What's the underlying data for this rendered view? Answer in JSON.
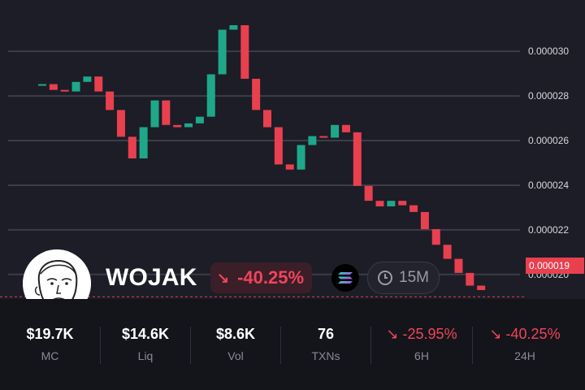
{
  "token": {
    "name": "WOJAK",
    "change_pct": "-40.25%",
    "timeframe": "15M"
  },
  "price_tag": "0.000019",
  "colors": {
    "up": "#1fa78a",
    "down": "#e8404f",
    "background": "#1c1d26",
    "stats_background": "#14151b",
    "gridline": "#3c3d47"
  },
  "icons": {
    "avatar": "wojak-face-icon",
    "change_arrow": "arrow-down-right-icon",
    "chain": "solana-icon",
    "timeframe": "clock-icon"
  },
  "stats": [
    {
      "value": "$19.7K",
      "label": "MC"
    },
    {
      "value": "$14.6K",
      "label": "Liq"
    },
    {
      "value": "$8.6K",
      "label": "Vol"
    },
    {
      "value": "76",
      "label": "TXNs"
    },
    {
      "value": "-25.95%",
      "label": "6H",
      "arrow": "↘"
    },
    {
      "value": "-40.25%",
      "label": "24H",
      "arrow": "↘"
    }
  ],
  "chart_data": {
    "type": "candlestick",
    "y_ticks": [
      "0.000030",
      "0.000028",
      "0.000026",
      "0.000024",
      "0.000022",
      "0.000020"
    ],
    "ylim": [
      1.89e-05,
      3.23e-05
    ],
    "current_price": 1.9e-05,
    "grid": true,
    "candles": [
      {
        "o": 2.847e-05,
        "c": 2.853e-05
      },
      {
        "o": 2.853e-05,
        "c": 2.827e-05
      },
      {
        "o": 2.827e-05,
        "c": 2.82e-05
      },
      {
        "o": 2.82e-05,
        "c": 2.863e-05
      },
      {
        "o": 2.863e-05,
        "c": 2.887e-05
      },
      {
        "o": 2.887e-05,
        "c": 2.82e-05
      },
      {
        "o": 2.82e-05,
        "c": 2.737e-05
      },
      {
        "o": 2.737e-05,
        "c": 2.617e-05
      },
      {
        "o": 2.617e-05,
        "c": 2.52e-05
      },
      {
        "o": 2.52e-05,
        "c": 2.66e-05
      },
      {
        "o": 2.66e-05,
        "c": 2.78e-05
      },
      {
        "o": 2.78e-05,
        "c": 2.67e-05
      },
      {
        "o": 2.67e-05,
        "c": 2.66e-05
      },
      {
        "o": 2.66e-05,
        "c": 2.677e-05
      },
      {
        "o": 2.677e-05,
        "c": 2.707e-05
      },
      {
        "o": 2.707e-05,
        "c": 2.897e-05
      },
      {
        "o": 2.897e-05,
        "c": 3.097e-05
      },
      {
        "o": 3.097e-05,
        "c": 3.117e-05
      },
      {
        "o": 3.117e-05,
        "c": 2.877e-05
      },
      {
        "o": 2.877e-05,
        "c": 2.737e-05
      },
      {
        "o": 2.737e-05,
        "c": 2.66e-05
      },
      {
        "o": 2.66e-05,
        "c": 2.493e-05
      },
      {
        "o": 2.493e-05,
        "c": 2.47e-05
      },
      {
        "o": 2.47e-05,
        "c": 2.58e-05
      },
      {
        "o": 2.58e-05,
        "c": 2.62e-05
      },
      {
        "o": 2.62e-05,
        "c": 2.613e-05
      },
      {
        "o": 2.613e-05,
        "c": 2.67e-05
      },
      {
        "o": 2.67e-05,
        "c": 2.637e-05
      },
      {
        "o": 2.637e-05,
        "c": 2.397e-05
      },
      {
        "o": 2.397e-05,
        "c": 2.33e-05
      },
      {
        "o": 2.33e-05,
        "c": 2.305e-05
      },
      {
        "o": 2.305e-05,
        "c": 2.33e-05
      },
      {
        "o": 2.33e-05,
        "c": 2.31e-05
      },
      {
        "o": 2.31e-05,
        "c": 2.28e-05
      },
      {
        "o": 2.28e-05,
        "c": 2.203e-05
      },
      {
        "o": 2.203e-05,
        "c": 2.133e-05
      },
      {
        "o": 2.133e-05,
        "c": 2.07e-05
      },
      {
        "o": 2.07e-05,
        "c": 2.007e-05
      },
      {
        "o": 2.007e-05,
        "c": 1.95e-05
      },
      {
        "o": 1.95e-05,
        "c": 1.93e-05
      }
    ]
  }
}
